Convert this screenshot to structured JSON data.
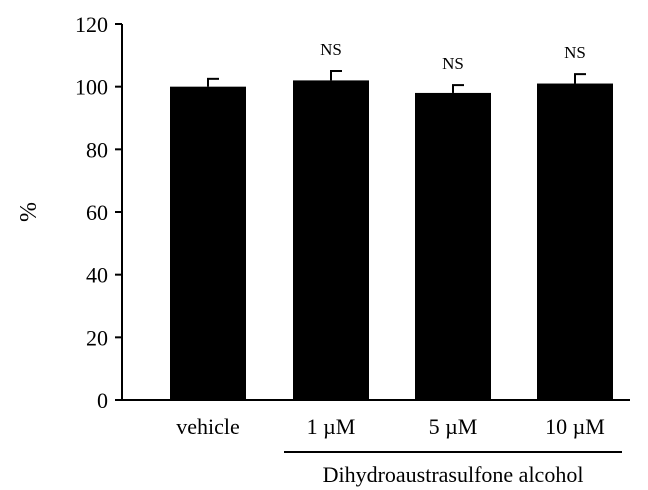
{
  "chart_data": {
    "type": "bar",
    "categories": [
      "vehicle",
      "1 µM",
      "5 µM",
      "10 µM"
    ],
    "values": [
      100,
      102,
      98,
      101
    ],
    "errors": [
      2.5,
      3,
      2.5,
      3
    ],
    "significance": [
      "",
      "NS",
      "NS",
      "NS"
    ],
    "ylabel": "%",
    "group_label": "Dihydroaustrasulfone alcohol",
    "ylim": [
      0,
      120
    ],
    "yticks": [
      0,
      20,
      40,
      60,
      80,
      100,
      120
    ],
    "bar_color": "#000000",
    "grid": false
  }
}
